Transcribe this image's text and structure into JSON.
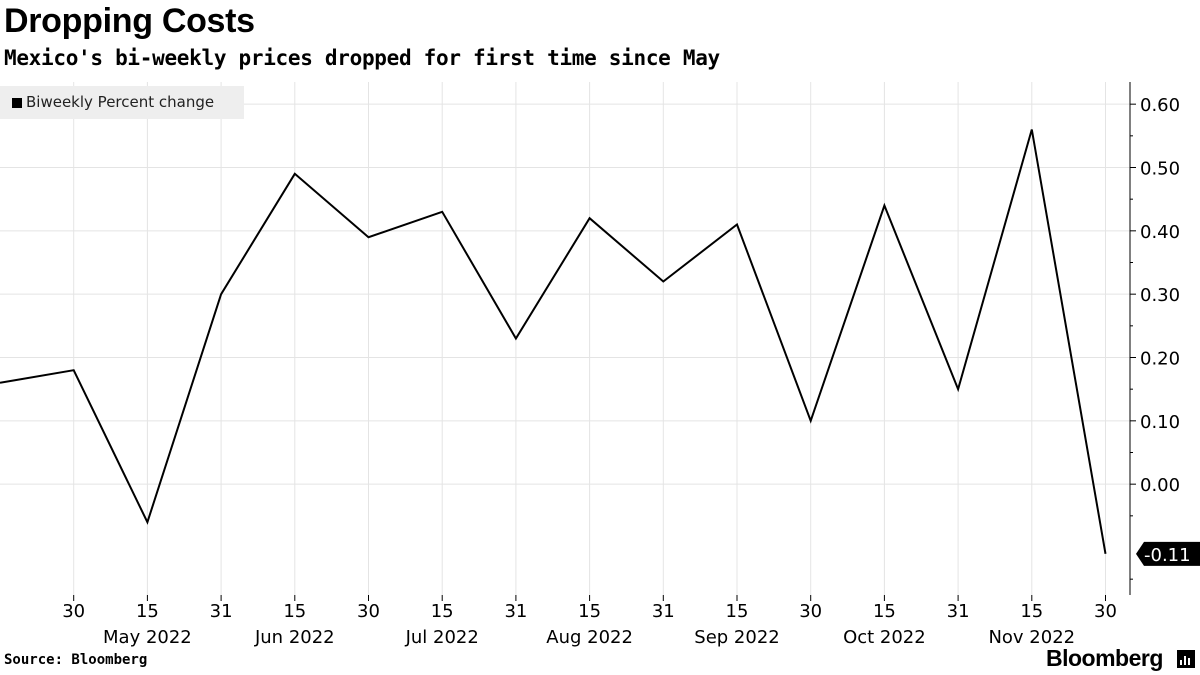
{
  "title": "Dropping Costs",
  "subtitle": "Mexico's bi-weekly prices dropped for first time since May",
  "source": "Source: Bloomberg",
  "brand": "Bloomberg",
  "colors": {
    "line": "#000000",
    "grid": "#e4e4e4",
    "legend_bg": "#eeeeee",
    "label_bg": "#000000",
    "label_text": "#ffffff"
  },
  "chart_data": {
    "type": "line",
    "title": "Dropping Costs",
    "subtitle": "Mexico's bi-weekly prices dropped for first time since May",
    "legend": {
      "placement": "top-left",
      "entries": [
        "Biweekly Percent change"
      ]
    },
    "x": [
      "2022-04-15",
      "2022-04-30",
      "2022-05-15",
      "2022-05-31",
      "2022-06-15",
      "2022-06-30",
      "2022-07-15",
      "2022-07-31",
      "2022-08-15",
      "2022-08-31",
      "2022-09-15",
      "2022-09-30",
      "2022-10-15",
      "2022-10-31",
      "2022-11-15",
      "2022-11-30"
    ],
    "series": [
      {
        "name": "Biweekly Percent change",
        "values": [
          0.16,
          0.18,
          -0.06,
          0.3,
          0.49,
          0.39,
          0.43,
          0.23,
          0.42,
          0.32,
          0.41,
          0.1,
          0.44,
          0.15,
          0.56,
          -0.11
        ]
      }
    ],
    "x_day_ticks": [
      "30",
      "15",
      "31",
      "15",
      "30",
      "15",
      "31",
      "15",
      "31",
      "15",
      "30",
      "15",
      "31",
      "15",
      "30"
    ],
    "x_month_labels": [
      "May 2022",
      "Jun 2022",
      "Jul 2022",
      "Aug 2022",
      "Sep 2022",
      "Oct 2022",
      "Nov 2022"
    ],
    "y_ticks": [
      "0.60",
      "0.50",
      "0.40",
      "0.30",
      "0.20",
      "0.10",
      "0.00"
    ],
    "y_tick_values": [
      0.6,
      0.5,
      0.4,
      0.3,
      0.2,
      0.1,
      0.0
    ],
    "ylim": [
      -0.175,
      0.635
    ],
    "y_axis_side": "right",
    "grid": true,
    "last_value_label": "-0.11"
  }
}
